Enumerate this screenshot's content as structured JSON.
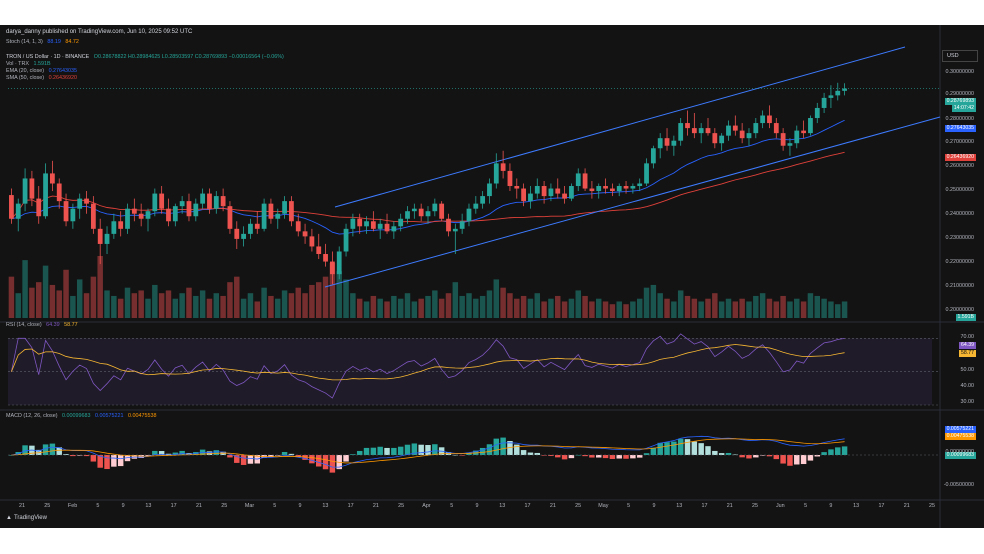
{
  "header": {
    "publisher": "darya_danny published on TradingView.com, Jun 10, 2025 09:52 UTC"
  },
  "stoch_legend": {
    "label": "Stoch (14, 1, 3)",
    "v1": "88.19",
    "v2": "84.72"
  },
  "price_legend": {
    "symbol": "TRON / US Dollar · 1D · BINANCE",
    "ohlc": "O0.28678822 H0.28984625 L0.28503597 C0.28769893 −0.00016564 (−0.06%)",
    "vol": "Vol · TRX",
    "vol_value": "1.591B",
    "ema": "EMA (20, close)",
    "ema_value": "0.27643035",
    "sma": "SMA (50, close)",
    "sma_value": "0.26436920"
  },
  "currency": "USD",
  "price_axis": [
    "0.30000000",
    "0.29000000",
    "0.28000000",
    "0.27000000",
    "0.26000000",
    "0.25000000",
    "0.24000000",
    "0.23000000",
    "0.22000000",
    "0.21000000",
    "0.20000000"
  ],
  "price_tags": {
    "last": "0.28769893",
    "countdown": "14:07:42",
    "ema": "0.27643035",
    "sma": "0.26436920",
    "vol": "1.591B"
  },
  "rsi_legend": {
    "label": "RSI (14, close)",
    "v1": "64.39",
    "v2": "58.77"
  },
  "rsi_axis": [
    "70.00",
    "60.00",
    "50.00",
    "40.00",
    "30.00"
  ],
  "macd_legend": {
    "label": "MACD (12, 26, close)",
    "v1": "0.00099683",
    "v2": "0.00575221",
    "v3": "0.00475538"
  },
  "macd_axis": [
    "0.00000000",
    "-0.00500000"
  ],
  "macd_tags": {
    "macd": "0.00575221",
    "signal": "0.00475538",
    "hist": "0.00099683"
  },
  "x_labels": [
    "21",
    "25",
    "Feb",
    "5",
    "9",
    "13",
    "17",
    "21",
    "25",
    "Mar",
    "5",
    "9",
    "13",
    "17",
    "21",
    "25",
    "Apr",
    "5",
    "9",
    "13",
    "17",
    "21",
    "25",
    "May",
    "5",
    "9",
    "13",
    "17",
    "21",
    "25",
    "Jun",
    "5",
    "9",
    "13",
    "17",
    "21",
    "25"
  ],
  "footer": {
    "brand": "TradingView"
  },
  "colors": {
    "up": "#26a69a",
    "down": "#ef5350",
    "ema": "#2962ff",
    "sma": "#e0413a",
    "channel": "#3d7bff",
    "rsi": "#7e57c2",
    "rsi_ma": "#f7b733",
    "macd": "#2962ff",
    "signal": "#ff9800",
    "background": "#131313"
  },
  "chart_data": [
    {
      "type": "candlestick",
      "title": "TRON / US Dollar · 1D · BINANCE",
      "xlabel": "",
      "ylabel": "",
      "x_range": [
        "2025-01-17",
        "2025-06-24"
      ],
      "ylim": [
        0.195,
        0.305
      ],
      "last_close": 0.28769893,
      "ema_20_last": 0.27643035,
      "sma_50_last": 0.2643692,
      "ohlc": [
        [
          0.2454,
          0.248,
          0.234,
          0.236
        ],
        [
          0.236,
          0.244,
          0.231,
          0.242
        ],
        [
          0.242,
          0.256,
          0.239,
          0.252
        ],
        [
          0.252,
          0.255,
          0.241,
          0.244
        ],
        [
          0.244,
          0.249,
          0.234,
          0.237
        ],
        [
          0.237,
          0.258,
          0.236,
          0.254
        ],
        [
          0.254,
          0.259,
          0.247,
          0.25
        ],
        [
          0.25,
          0.252,
          0.24,
          0.243
        ],
        [
          0.243,
          0.246,
          0.233,
          0.235
        ],
        [
          0.235,
          0.242,
          0.232,
          0.24
        ],
        [
          0.24,
          0.246,
          0.236,
          0.244
        ],
        [
          0.244,
          0.247,
          0.238,
          0.242
        ],
        [
          0.242,
          0.245,
          0.23,
          0.232
        ],
        [
          0.232,
          0.236,
          0.218,
          0.226
        ],
        [
          0.226,
          0.233,
          0.222,
          0.23
        ],
        [
          0.23,
          0.238,
          0.228,
          0.235
        ],
        [
          0.235,
          0.239,
          0.229,
          0.232
        ],
        [
          0.232,
          0.242,
          0.23,
          0.24
        ],
        [
          0.24,
          0.244,
          0.235,
          0.238
        ],
        [
          0.238,
          0.242,
          0.233,
          0.236
        ],
        [
          0.236,
          0.24,
          0.231,
          0.239
        ],
        [
          0.239,
          0.248,
          0.237,
          0.246
        ],
        [
          0.246,
          0.249,
          0.238,
          0.24
        ],
        [
          0.24,
          0.244,
          0.233,
          0.235
        ],
        [
          0.235,
          0.242,
          0.233,
          0.241
        ],
        [
          0.241,
          0.245,
          0.238,
          0.243
        ],
        [
          0.243,
          0.246,
          0.235,
          0.237
        ],
        [
          0.237,
          0.244,
          0.235,
          0.242
        ],
        [
          0.242,
          0.248,
          0.24,
          0.246
        ],
        [
          0.246,
          0.248,
          0.238,
          0.24
        ],
        [
          0.24,
          0.247,
          0.238,
          0.245
        ],
        [
          0.245,
          0.248,
          0.239,
          0.241
        ],
        [
          0.241,
          0.243,
          0.23,
          0.232
        ],
        [
          0.232,
          0.235,
          0.224,
          0.228
        ],
        [
          0.228,
          0.233,
          0.225,
          0.23
        ],
        [
          0.23,
          0.236,
          0.228,
          0.234
        ],
        [
          0.234,
          0.239,
          0.23,
          0.232
        ],
        [
          0.232,
          0.244,
          0.231,
          0.242
        ],
        [
          0.242,
          0.244,
          0.234,
          0.236
        ],
        [
          0.236,
          0.24,
          0.232,
          0.238
        ],
        [
          0.238,
          0.245,
          0.236,
          0.243
        ],
        [
          0.243,
          0.245,
          0.233,
          0.235
        ],
        [
          0.235,
          0.238,
          0.229,
          0.231
        ],
        [
          0.231,
          0.234,
          0.226,
          0.229
        ],
        [
          0.229,
          0.232,
          0.223,
          0.225
        ],
        [
          0.225,
          0.23,
          0.22,
          0.222
        ],
        [
          0.222,
          0.226,
          0.217,
          0.219
        ],
        [
          0.219,
          0.223,
          0.21,
          0.214
        ],
        [
          0.214,
          0.225,
          0.212,
          0.223
        ],
        [
          0.223,
          0.234,
          0.221,
          0.232
        ],
        [
          0.232,
          0.238,
          0.229,
          0.236
        ],
        [
          0.236,
          0.238,
          0.23,
          0.233
        ],
        [
          0.233,
          0.237,
          0.23,
          0.235
        ],
        [
          0.235,
          0.239,
          0.231,
          0.232
        ],
        [
          0.232,
          0.236,
          0.228,
          0.234
        ],
        [
          0.234,
          0.238,
          0.23,
          0.231
        ],
        [
          0.231,
          0.235,
          0.228,
          0.233
        ],
        [
          0.233,
          0.238,
          0.231,
          0.236
        ],
        [
          0.236,
          0.241,
          0.234,
          0.239
        ],
        [
          0.239,
          0.242,
          0.236,
          0.24
        ],
        [
          0.24,
          0.242,
          0.235,
          0.237
        ],
        [
          0.237,
          0.241,
          0.234,
          0.239
        ],
        [
          0.239,
          0.244,
          0.237,
          0.242
        ],
        [
          0.242,
          0.243,
          0.235,
          0.236
        ],
        [
          0.236,
          0.238,
          0.229,
          0.231
        ],
        [
          0.231,
          0.234,
          0.222,
          0.232
        ],
        [
          0.232,
          0.238,
          0.23,
          0.235
        ],
        [
          0.235,
          0.242,
          0.233,
          0.24
        ],
        [
          0.24,
          0.245,
          0.238,
          0.242
        ],
        [
          0.242,
          0.247,
          0.24,
          0.245
        ],
        [
          0.245,
          0.252,
          0.242,
          0.25
        ],
        [
          0.25,
          0.262,
          0.248,
          0.258
        ],
        [
          0.258,
          0.263,
          0.252,
          0.255
        ],
        [
          0.255,
          0.258,
          0.247,
          0.249
        ],
        [
          0.249,
          0.252,
          0.244,
          0.248
        ],
        [
          0.248,
          0.25,
          0.241,
          0.243
        ],
        [
          0.243,
          0.249,
          0.24,
          0.246
        ],
        [
          0.246,
          0.252,
          0.244,
          0.249
        ],
        [
          0.249,
          0.251,
          0.242,
          0.245
        ],
        [
          0.245,
          0.25,
          0.243,
          0.248
        ],
        [
          0.248,
          0.252,
          0.244,
          0.246
        ],
        [
          0.246,
          0.249,
          0.242,
          0.244
        ],
        [
          0.244,
          0.25,
          0.243,
          0.249
        ],
        [
          0.249,
          0.256,
          0.247,
          0.254
        ],
        [
          0.254,
          0.256,
          0.247,
          0.248
        ],
        [
          0.248,
          0.251,
          0.244,
          0.247
        ],
        [
          0.247,
          0.25,
          0.244,
          0.249
        ],
        [
          0.249,
          0.252,
          0.246,
          0.248
        ],
        [
          0.248,
          0.25,
          0.245,
          0.247
        ],
        [
          0.247,
          0.25,
          0.245,
          0.249
        ],
        [
          0.249,
          0.251,
          0.246,
          0.248
        ],
        [
          0.248,
          0.25,
          0.246,
          0.249
        ],
        [
          0.249,
          0.252,
          0.247,
          0.25
        ],
        [
          0.25,
          0.26,
          0.249,
          0.258
        ],
        [
          0.258,
          0.265,
          0.256,
          0.264
        ],
        [
          0.264,
          0.27,
          0.26,
          0.268
        ],
        [
          0.268,
          0.272,
          0.263,
          0.265
        ],
        [
          0.265,
          0.269,
          0.261,
          0.267
        ],
        [
          0.267,
          0.276,
          0.265,
          0.274
        ],
        [
          0.274,
          0.279,
          0.269,
          0.272
        ],
        [
          0.272,
          0.278,
          0.268,
          0.27
        ],
        [
          0.27,
          0.274,
          0.266,
          0.272
        ],
        [
          0.272,
          0.276,
          0.269,
          0.27
        ],
        [
          0.27,
          0.272,
          0.264,
          0.266
        ],
        [
          0.266,
          0.27,
          0.263,
          0.269
        ],
        [
          0.269,
          0.275,
          0.267,
          0.273
        ],
        [
          0.273,
          0.277,
          0.269,
          0.271
        ],
        [
          0.271,
          0.274,
          0.266,
          0.268
        ],
        [
          0.268,
          0.272,
          0.265,
          0.27
        ],
        [
          0.27,
          0.276,
          0.268,
          0.274
        ],
        [
          0.274,
          0.279,
          0.272,
          0.277
        ],
        [
          0.277,
          0.281,
          0.272,
          0.274
        ],
        [
          0.274,
          0.276,
          0.268,
          0.27
        ],
        [
          0.27,
          0.272,
          0.263,
          0.265
        ],
        [
          0.265,
          0.268,
          0.261,
          0.266
        ],
        [
          0.266,
          0.273,
          0.264,
          0.271
        ],
        [
          0.271,
          0.275,
          0.268,
          0.27
        ],
        [
          0.27,
          0.277,
          0.269,
          0.276
        ],
        [
          0.276,
          0.282,
          0.274,
          0.28
        ],
        [
          0.28,
          0.286,
          0.278,
          0.284
        ],
        [
          0.284,
          0.289,
          0.28,
          0.285
        ],
        [
          0.285,
          0.29,
          0.283,
          0.2868
        ],
        [
          0.2868,
          0.2898,
          0.285,
          0.2877
        ]
      ]
    },
    {
      "type": "bar",
      "title": "Vol · TRX",
      "last_value": "1.591B",
      "series_note": "relative daily volume, same dates as price",
      "values": [
        30,
        18,
        42,
        22,
        26,
        38,
        24,
        20,
        35,
        16,
        28,
        18,
        30,
        45,
        20,
        16,
        14,
        22,
        18,
        20,
        14,
        24,
        18,
        20,
        14,
        18,
        22,
        16,
        20,
        14,
        18,
        16,
        26,
        30,
        14,
        18,
        12,
        22,
        16,
        14,
        20,
        18,
        22,
        18,
        24,
        26,
        30,
        40,
        34,
        28,
        18,
        14,
        12,
        16,
        14,
        12,
        16,
        14,
        18,
        12,
        14,
        16,
        20,
        14,
        18,
        26,
        16,
        18,
        14,
        16,
        20,
        28,
        22,
        18,
        14,
        16,
        14,
        18,
        12,
        14,
        16,
        12,
        14,
        20,
        16,
        12,
        14,
        12,
        10,
        12,
        10,
        12,
        14,
        22,
        24,
        18,
        14,
        12,
        20,
        16,
        14,
        12,
        14,
        18,
        12,
        14,
        12,
        14,
        12,
        16,
        18,
        14,
        12,
        16,
        12,
        14,
        12,
        18,
        16,
        14,
        12,
        10,
        12
      ]
    },
    {
      "type": "line",
      "title": "RSI (14, close)",
      "ylim": [
        30,
        75
      ],
      "series": [
        {
          "name": "RSI",
          "last": 64.39
        },
        {
          "name": "RSI MA",
          "last": 58.77
        }
      ],
      "bands": [
        70,
        50,
        30
      ]
    },
    {
      "type": "bar",
      "title": "MACD (12, 26, close)",
      "series": [
        {
          "name": "MACD",
          "last": 0.00575221
        },
        {
          "name": "Signal",
          "last": 0.00475538
        },
        {
          "name": "Histogram",
          "last": 0.00099683
        }
      ]
    }
  ]
}
